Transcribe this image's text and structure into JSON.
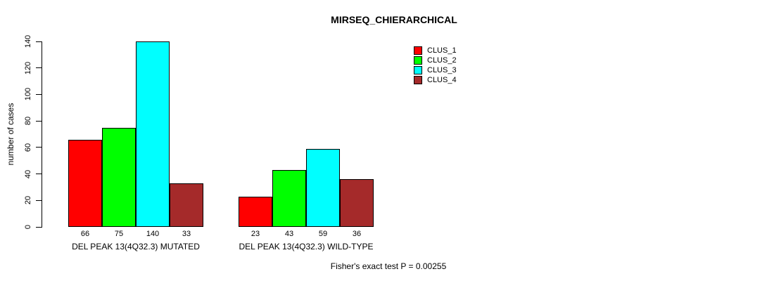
{
  "chart_data": {
    "type": "bar",
    "title": "MIRSEQ_CHIERARCHICAL",
    "ylabel": "number of cases",
    "xlabel": "",
    "ylim": [
      0,
      140
    ],
    "yticks": [
      0,
      20,
      40,
      60,
      80,
      100,
      120,
      140
    ],
    "grid": false,
    "legend_position": "top-right",
    "categories": [
      "DEL PEAK 13(4Q32.3) MUTATED",
      "DEL PEAK 13(4Q32.3) WILD-TYPE"
    ],
    "series": [
      {
        "name": "CLUS_1",
        "color": "#FF0000",
        "values": [
          66,
          23
        ]
      },
      {
        "name": "CLUS_2",
        "color": "#00FF00",
        "values": [
          75,
          43
        ]
      },
      {
        "name": "CLUS_3",
        "color": "#00FFFF",
        "values": [
          140,
          59
        ]
      },
      {
        "name": "CLUS_4",
        "color": "#A52A2A",
        "values": [
          33,
          36
        ]
      }
    ],
    "bar_value_labels": [
      [
        66,
        75,
        140,
        33
      ],
      [
        23,
        43,
        59,
        36
      ]
    ],
    "annotation": "Fisher's exact test P = 0.00255",
    "colors": {
      "background": "#FFFFFF",
      "axis": "#000000",
      "text": "#000000"
    }
  }
}
